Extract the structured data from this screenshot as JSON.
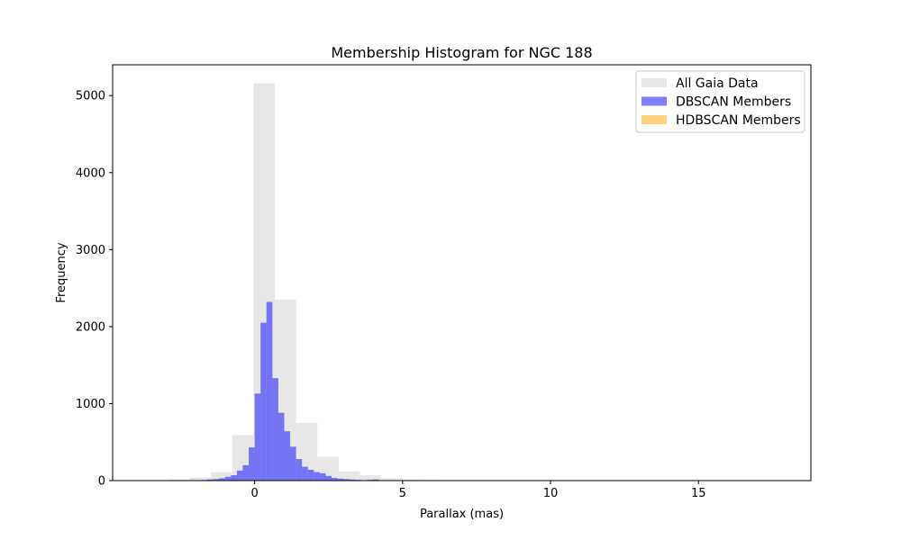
{
  "chart_data": {
    "type": "bar",
    "title": "Membership Histogram for NGC 188",
    "xlabel": "Parallax (mas)",
    "ylabel": "Frequency",
    "xlim": [
      -4.8,
      18.8
    ],
    "ylim": [
      0,
      5400
    ],
    "xticks": [
      0,
      5,
      10,
      15
    ],
    "yticks": [
      0,
      1000,
      2000,
      3000,
      4000,
      5000
    ],
    "grid": false,
    "legend_position": "top-right",
    "series": [
      {
        "name": "All Gaia Data",
        "color": "#d3d3d3",
        "opacity": 0.55,
        "bin_width": 0.72,
        "bins": [
          {
            "x0": -3.64,
            "count": 5
          },
          {
            "x0": -2.92,
            "count": 15
          },
          {
            "x0": -2.2,
            "count": 40
          },
          {
            "x0": -1.48,
            "count": 110
          },
          {
            "x0": -0.76,
            "count": 590
          },
          {
            "x0": -0.04,
            "count": 5160
          },
          {
            "x0": 0.68,
            "count": 2350
          },
          {
            "x0": 1.4,
            "count": 750
          },
          {
            "x0": 2.12,
            "count": 310
          },
          {
            "x0": 2.84,
            "count": 120
          },
          {
            "x0": 3.56,
            "count": 70
          },
          {
            "x0": 4.28,
            "count": 30
          },
          {
            "x0": 5.0,
            "count": 15
          },
          {
            "x0": 5.72,
            "count": 8
          },
          {
            "x0": 6.44,
            "count": 4
          },
          {
            "x0": 7.16,
            "count": 2
          },
          {
            "x0": 7.88,
            "count": 1
          },
          {
            "x0": 8.6,
            "count": 1
          },
          {
            "x0": 14.5,
            "count": 1
          },
          {
            "x0": 16.66,
            "count": 1
          }
        ]
      },
      {
        "name": "DBSCAN Members",
        "color": "#0000ff",
        "opacity": 0.5,
        "bin_width": 0.2,
        "bins": [
          {
            "x0": -2.0,
            "count": 3
          },
          {
            "x0": -1.8,
            "count": 8
          },
          {
            "x0": -1.6,
            "count": 15
          },
          {
            "x0": -1.4,
            "count": 20
          },
          {
            "x0": -1.2,
            "count": 30
          },
          {
            "x0": -1.0,
            "count": 50
          },
          {
            "x0": -0.8,
            "count": 70
          },
          {
            "x0": -0.6,
            "count": 130
          },
          {
            "x0": -0.4,
            "count": 200
          },
          {
            "x0": -0.2,
            "count": 430
          },
          {
            "x0": 0.0,
            "count": 1130
          },
          {
            "x0": 0.2,
            "count": 2050
          },
          {
            "x0": 0.4,
            "count": 2320
          },
          {
            "x0": 0.6,
            "count": 1330
          },
          {
            "x0": 0.8,
            "count": 880
          },
          {
            "x0": 1.0,
            "count": 640
          },
          {
            "x0": 1.2,
            "count": 440
          },
          {
            "x0": 1.4,
            "count": 280
          },
          {
            "x0": 1.6,
            "count": 180
          },
          {
            "x0": 1.8,
            "count": 140
          },
          {
            "x0": 2.0,
            "count": 110
          },
          {
            "x0": 2.2,
            "count": 95
          },
          {
            "x0": 2.4,
            "count": 60
          },
          {
            "x0": 2.6,
            "count": 35
          },
          {
            "x0": 2.8,
            "count": 25
          },
          {
            "x0": 3.0,
            "count": 20
          },
          {
            "x0": 3.2,
            "count": 15
          },
          {
            "x0": 3.4,
            "count": 10
          },
          {
            "x0": 3.6,
            "count": 6
          },
          {
            "x0": 3.8,
            "count": 10
          },
          {
            "x0": 4.0,
            "count": 15
          },
          {
            "x0": 4.2,
            "count": 5
          },
          {
            "x0": 4.4,
            "count": 3
          },
          {
            "x0": 4.6,
            "count": 2
          },
          {
            "x0": 4.8,
            "count": 1
          }
        ]
      },
      {
        "name": "HDBSCAN Members",
        "color": "#ffa500",
        "opacity": 0.5,
        "bin_width": 0.2,
        "bins": []
      }
    ]
  }
}
